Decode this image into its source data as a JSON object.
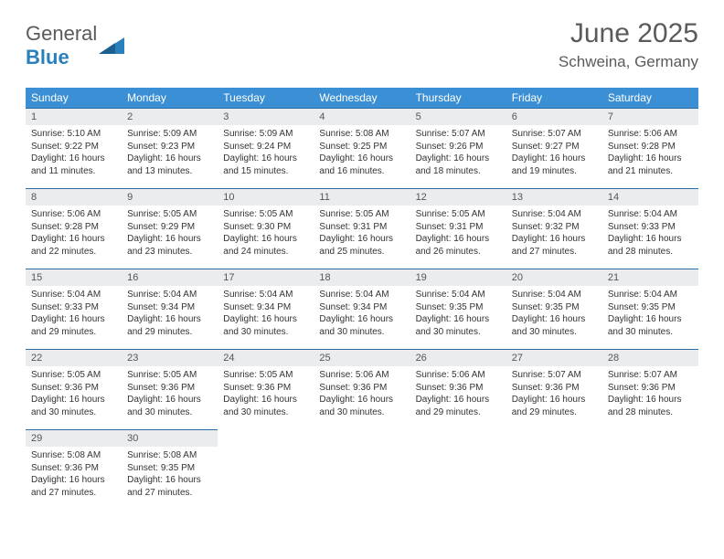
{
  "brand": {
    "part1": "General",
    "part2": "Blue"
  },
  "title": "June 2025",
  "location": "Schweina, Germany",
  "colors": {
    "header_bg": "#3b8fd4",
    "header_text": "#ffffff",
    "border": "#2c6ca3",
    "daynum_bg": "#e9edef",
    "text": "#333333",
    "brand_gray": "#5a5a5a",
    "brand_blue": "#2a7fbd"
  },
  "day_headers": [
    "Sunday",
    "Monday",
    "Tuesday",
    "Wednesday",
    "Thursday",
    "Friday",
    "Saturday"
  ],
  "weeks": [
    [
      {
        "n": "1",
        "sr": "Sunrise: 5:10 AM",
        "ss": "Sunset: 9:22 PM",
        "d1": "Daylight: 16 hours",
        "d2": "and 11 minutes."
      },
      {
        "n": "2",
        "sr": "Sunrise: 5:09 AM",
        "ss": "Sunset: 9:23 PM",
        "d1": "Daylight: 16 hours",
        "d2": "and 13 minutes."
      },
      {
        "n": "3",
        "sr": "Sunrise: 5:09 AM",
        "ss": "Sunset: 9:24 PM",
        "d1": "Daylight: 16 hours",
        "d2": "and 15 minutes."
      },
      {
        "n": "4",
        "sr": "Sunrise: 5:08 AM",
        "ss": "Sunset: 9:25 PM",
        "d1": "Daylight: 16 hours",
        "d2": "and 16 minutes."
      },
      {
        "n": "5",
        "sr": "Sunrise: 5:07 AM",
        "ss": "Sunset: 9:26 PM",
        "d1": "Daylight: 16 hours",
        "d2": "and 18 minutes."
      },
      {
        "n": "6",
        "sr": "Sunrise: 5:07 AM",
        "ss": "Sunset: 9:27 PM",
        "d1": "Daylight: 16 hours",
        "d2": "and 19 minutes."
      },
      {
        "n": "7",
        "sr": "Sunrise: 5:06 AM",
        "ss": "Sunset: 9:28 PM",
        "d1": "Daylight: 16 hours",
        "d2": "and 21 minutes."
      }
    ],
    [
      {
        "n": "8",
        "sr": "Sunrise: 5:06 AM",
        "ss": "Sunset: 9:28 PM",
        "d1": "Daylight: 16 hours",
        "d2": "and 22 minutes."
      },
      {
        "n": "9",
        "sr": "Sunrise: 5:05 AM",
        "ss": "Sunset: 9:29 PM",
        "d1": "Daylight: 16 hours",
        "d2": "and 23 minutes."
      },
      {
        "n": "10",
        "sr": "Sunrise: 5:05 AM",
        "ss": "Sunset: 9:30 PM",
        "d1": "Daylight: 16 hours",
        "d2": "and 24 minutes."
      },
      {
        "n": "11",
        "sr": "Sunrise: 5:05 AM",
        "ss": "Sunset: 9:31 PM",
        "d1": "Daylight: 16 hours",
        "d2": "and 25 minutes."
      },
      {
        "n": "12",
        "sr": "Sunrise: 5:05 AM",
        "ss": "Sunset: 9:31 PM",
        "d1": "Daylight: 16 hours",
        "d2": "and 26 minutes."
      },
      {
        "n": "13",
        "sr": "Sunrise: 5:04 AM",
        "ss": "Sunset: 9:32 PM",
        "d1": "Daylight: 16 hours",
        "d2": "and 27 minutes."
      },
      {
        "n": "14",
        "sr": "Sunrise: 5:04 AM",
        "ss": "Sunset: 9:33 PM",
        "d1": "Daylight: 16 hours",
        "d2": "and 28 minutes."
      }
    ],
    [
      {
        "n": "15",
        "sr": "Sunrise: 5:04 AM",
        "ss": "Sunset: 9:33 PM",
        "d1": "Daylight: 16 hours",
        "d2": "and 29 minutes."
      },
      {
        "n": "16",
        "sr": "Sunrise: 5:04 AM",
        "ss": "Sunset: 9:34 PM",
        "d1": "Daylight: 16 hours",
        "d2": "and 29 minutes."
      },
      {
        "n": "17",
        "sr": "Sunrise: 5:04 AM",
        "ss": "Sunset: 9:34 PM",
        "d1": "Daylight: 16 hours",
        "d2": "and 30 minutes."
      },
      {
        "n": "18",
        "sr": "Sunrise: 5:04 AM",
        "ss": "Sunset: 9:34 PM",
        "d1": "Daylight: 16 hours",
        "d2": "and 30 minutes."
      },
      {
        "n": "19",
        "sr": "Sunrise: 5:04 AM",
        "ss": "Sunset: 9:35 PM",
        "d1": "Daylight: 16 hours",
        "d2": "and 30 minutes."
      },
      {
        "n": "20",
        "sr": "Sunrise: 5:04 AM",
        "ss": "Sunset: 9:35 PM",
        "d1": "Daylight: 16 hours",
        "d2": "and 30 minutes."
      },
      {
        "n": "21",
        "sr": "Sunrise: 5:04 AM",
        "ss": "Sunset: 9:35 PM",
        "d1": "Daylight: 16 hours",
        "d2": "and 30 minutes."
      }
    ],
    [
      {
        "n": "22",
        "sr": "Sunrise: 5:05 AM",
        "ss": "Sunset: 9:36 PM",
        "d1": "Daylight: 16 hours",
        "d2": "and 30 minutes."
      },
      {
        "n": "23",
        "sr": "Sunrise: 5:05 AM",
        "ss": "Sunset: 9:36 PM",
        "d1": "Daylight: 16 hours",
        "d2": "and 30 minutes."
      },
      {
        "n": "24",
        "sr": "Sunrise: 5:05 AM",
        "ss": "Sunset: 9:36 PM",
        "d1": "Daylight: 16 hours",
        "d2": "and 30 minutes."
      },
      {
        "n": "25",
        "sr": "Sunrise: 5:06 AM",
        "ss": "Sunset: 9:36 PM",
        "d1": "Daylight: 16 hours",
        "d2": "and 30 minutes."
      },
      {
        "n": "26",
        "sr": "Sunrise: 5:06 AM",
        "ss": "Sunset: 9:36 PM",
        "d1": "Daylight: 16 hours",
        "d2": "and 29 minutes."
      },
      {
        "n": "27",
        "sr": "Sunrise: 5:07 AM",
        "ss": "Sunset: 9:36 PM",
        "d1": "Daylight: 16 hours",
        "d2": "and 29 minutes."
      },
      {
        "n": "28",
        "sr": "Sunrise: 5:07 AM",
        "ss": "Sunset: 9:36 PM",
        "d1": "Daylight: 16 hours",
        "d2": "and 28 minutes."
      }
    ],
    [
      {
        "n": "29",
        "sr": "Sunrise: 5:08 AM",
        "ss": "Sunset: 9:36 PM",
        "d1": "Daylight: 16 hours",
        "d2": "and 27 minutes."
      },
      {
        "n": "30",
        "sr": "Sunrise: 5:08 AM",
        "ss": "Sunset: 9:35 PM",
        "d1": "Daylight: 16 hours",
        "d2": "and 27 minutes."
      },
      null,
      null,
      null,
      null,
      null
    ]
  ]
}
